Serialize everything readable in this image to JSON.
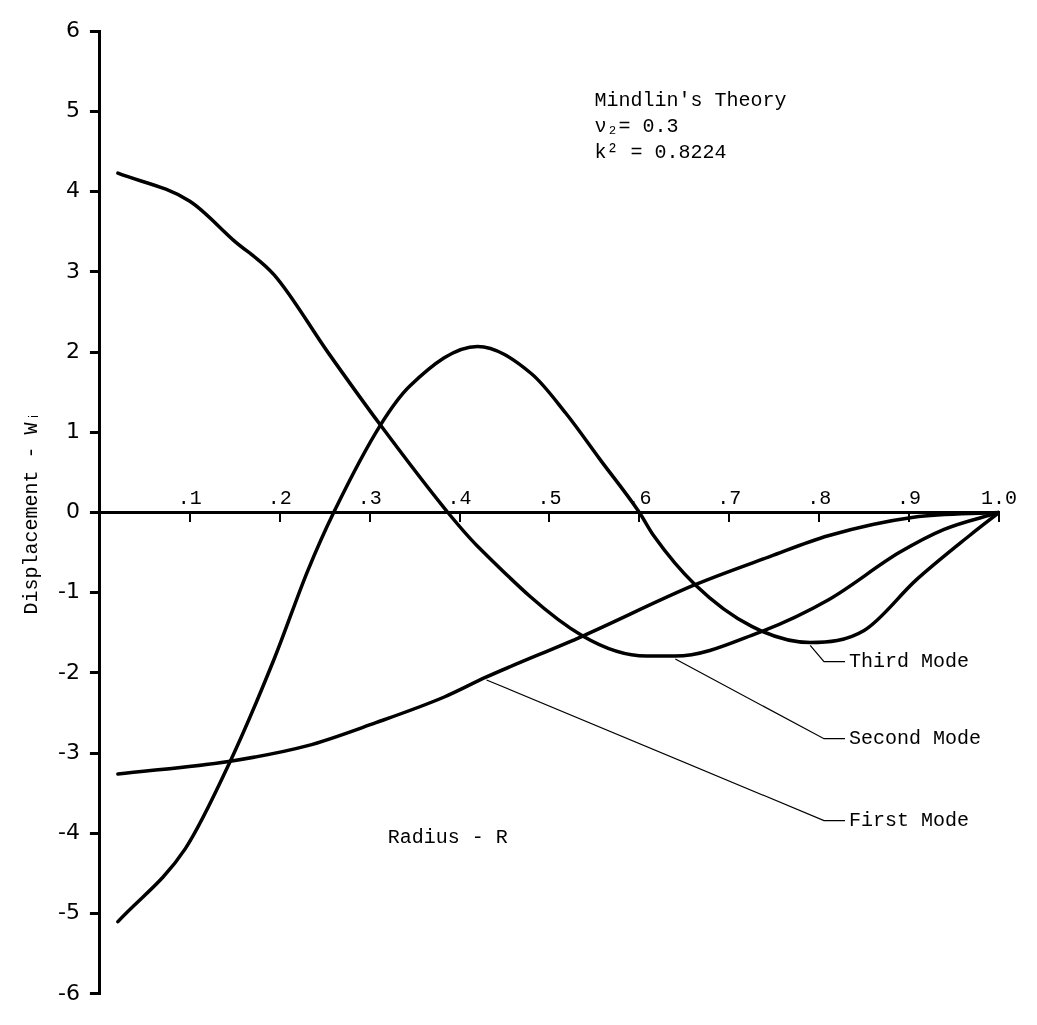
{
  "chart_data": {
    "type": "line",
    "xlabel": "Radius - R",
    "ylabel": "Displacement - Wᵢ",
    "annotations": [
      "Mindlin's Theory",
      "ν₂= 0.3",
      "k² = 0.8224"
    ],
    "xlim": [
      0,
      1.0
    ],
    "xticks": [
      {
        "value": 0.1,
        "label": ".1"
      },
      {
        "value": 0.2,
        "label": ".2"
      },
      {
        "value": 0.3,
        "label": ".3"
      },
      {
        "value": 0.4,
        "label": ".4"
      },
      {
        "value": 0.5,
        "label": ".5"
      },
      {
        "value": 0.6,
        "label": ".6"
      },
      {
        "value": 0.7,
        "label": ".7"
      },
      {
        "value": 0.8,
        "label": ".8"
      },
      {
        "value": 0.9,
        "label": ".9"
      },
      {
        "value": 1.0,
        "label": "1.0"
      }
    ],
    "ylim": [
      -6,
      6
    ],
    "yticks": [
      -6,
      -5,
      -4,
      -3,
      -2,
      -1,
      0,
      1,
      2,
      3,
      4,
      5,
      6
    ],
    "grid": false,
    "legend": "bottom right",
    "series": [
      {
        "name": "First Mode",
        "color": "#000000",
        "x": [
          0.02,
          0.145,
          0.23,
          0.307,
          0.383,
          0.43,
          0.537,
          0.662,
          0.745,
          0.81,
          0.905,
          1.0
        ],
        "values": [
          -3.26,
          -3.1,
          -2.91,
          -2.62,
          -2.3,
          -2.05,
          -1.54,
          -0.9,
          -0.55,
          -0.29,
          -0.06,
          0
        ]
      },
      {
        "name": "Second Mode",
        "color": "#000000",
        "x": [
          0.02,
          0.1,
          0.149,
          0.194,
          0.254,
          0.312,
          0.387,
          0.42,
          0.537,
          0.608,
          0.64,
          0.732,
          0.81,
          0.889,
          0.939,
          1.0
        ],
        "values": [
          4.23,
          3.88,
          3.39,
          2.96,
          1.99,
          1.09,
          0,
          -0.42,
          -1.54,
          -1.79,
          -1.79,
          -1.5,
          -1.09,
          -0.5,
          -0.21,
          0
        ]
      },
      {
        "name": "Third Mode",
        "color": "#000000",
        "x": [
          0.02,
          0.095,
          0.145,
          0.194,
          0.231,
          0.26,
          0.312,
          0.345,
          0.42,
          0.48,
          0.518,
          0.557,
          0.6,
          0.616,
          0.662,
          0.725,
          0.79,
          0.85,
          0.908,
          0.967,
          1.0
        ],
        "values": [
          -5.1,
          -4.19,
          -3.1,
          -1.82,
          -0.73,
          0,
          1.09,
          1.58,
          2.07,
          1.73,
          1.24,
          0.65,
          0,
          -0.29,
          -0.9,
          -1.42,
          -1.62,
          -1.47,
          -0.84,
          -0.29,
          0
        ]
      }
    ]
  }
}
